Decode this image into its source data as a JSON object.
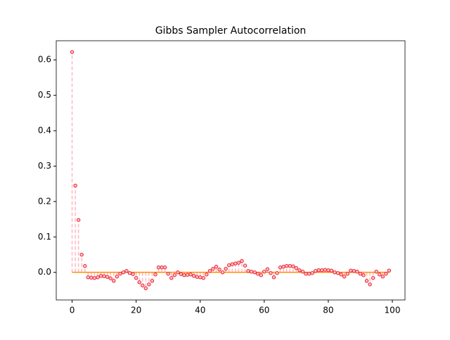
{
  "chart_data": {
    "type": "stem",
    "title": "Gibbs Sampler Autocorrelation",
    "x": [
      0,
      1,
      2,
      3,
      4,
      5,
      6,
      7,
      8,
      9,
      10,
      11,
      12,
      13,
      14,
      15,
      16,
      17,
      18,
      19,
      20,
      21,
      22,
      23,
      24,
      25,
      26,
      27,
      28,
      29,
      30,
      31,
      32,
      33,
      34,
      35,
      36,
      37,
      38,
      39,
      40,
      41,
      42,
      43,
      44,
      45,
      46,
      47,
      48,
      49,
      50,
      51,
      52,
      53,
      54,
      55,
      56,
      57,
      58,
      59,
      60,
      61,
      62,
      63,
      64,
      65,
      66,
      67,
      68,
      69,
      70,
      71,
      72,
      73,
      74,
      75,
      76,
      77,
      78,
      79,
      80,
      81,
      82,
      83,
      84,
      85,
      86,
      87,
      88,
      89,
      90,
      91,
      92,
      93,
      94,
      95,
      96,
      97,
      98,
      99
    ],
    "values": [
      0.622,
      0.245,
      0.148,
      0.05,
      0.018,
      -0.014,
      -0.015,
      -0.016,
      -0.014,
      -0.01,
      -0.011,
      -0.013,
      -0.017,
      -0.024,
      -0.012,
      -0.004,
      0.0,
      0.004,
      -0.002,
      -0.005,
      -0.016,
      -0.028,
      -0.037,
      -0.045,
      -0.034,
      -0.024,
      -0.006,
      0.014,
      0.014,
      0.014,
      -0.004,
      -0.016,
      -0.008,
      0.0,
      -0.005,
      -0.008,
      -0.007,
      -0.006,
      -0.01,
      -0.013,
      -0.014,
      -0.016,
      -0.006,
      0.004,
      0.01,
      0.016,
      0.008,
      0.0,
      0.01,
      0.02,
      0.023,
      0.025,
      0.027,
      0.032,
      0.019,
      0.004,
      0.002,
      0.0,
      -0.004,
      -0.008,
      0.002,
      0.009,
      -0.002,
      -0.014,
      -0.002,
      0.014,
      0.016,
      0.018,
      0.018,
      0.017,
      0.012,
      0.006,
      0.002,
      -0.004,
      -0.004,
      -0.002,
      0.004,
      0.006,
      0.006,
      0.007,
      0.006,
      0.005,
      0.0,
      -0.002,
      -0.006,
      -0.012,
      -0.004,
      0.005,
      0.004,
      0.002,
      -0.004,
      -0.008,
      -0.024,
      -0.034,
      -0.016,
      0.002,
      -0.006,
      -0.012,
      -0.004,
      0.005
    ],
    "xlim": [
      -4.95,
      103.95
    ],
    "ylim": [
      -0.078,
      0.654
    ],
    "xticks": [
      0,
      20,
      40,
      60,
      80,
      100
    ],
    "yticks": [
      {
        "value": 0,
        "label": "0.0"
      },
      {
        "value": 0.1,
        "label": "0.1"
      },
      {
        "value": 0.2,
        "label": "0.2"
      },
      {
        "value": 0.3,
        "label": "0.3"
      },
      {
        "value": 0.4,
        "label": "0.4"
      },
      {
        "value": 0.5,
        "label": "0.5"
      },
      {
        "value": 0.6,
        "label": "0.6"
      }
    ],
    "stem_color": "#ffb6c1",
    "marker_color": "#e8202a",
    "marker_fill": "#ffc0cb",
    "baseline_color": "#ff8c00"
  }
}
